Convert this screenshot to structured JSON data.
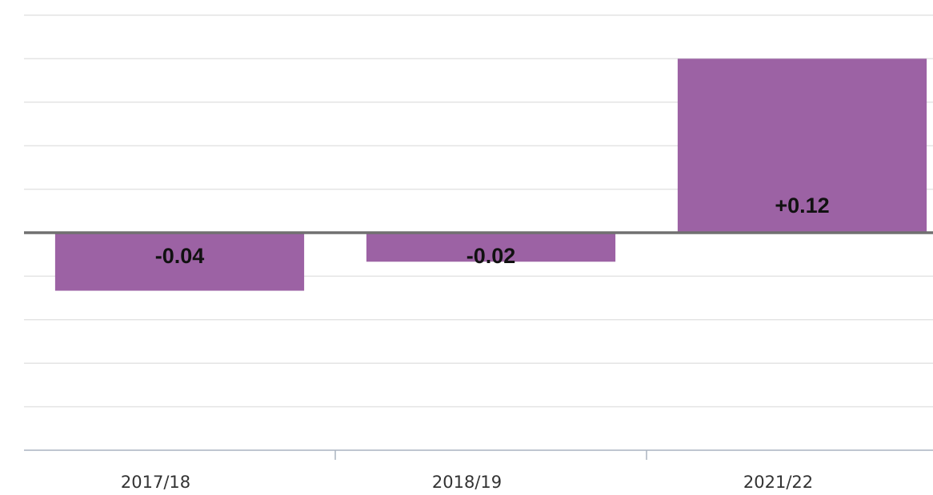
{
  "chart_data": {
    "type": "bar",
    "categories": [
      "2017/18",
      "2018/19",
      "2021/22"
    ],
    "values": [
      -0.04,
      -0.02,
      0.12
    ],
    "value_labels": [
      "-0.04",
      "-0.02",
      "+0.12"
    ],
    "color": "#9a5fa2",
    "ylim": [
      -0.15,
      0.15
    ],
    "yticks": [
      -0.15,
      -0.12,
      -0.09,
      -0.06,
      -0.03,
      0,
      0.03,
      0.06,
      0.09,
      0.12,
      0.15
    ],
    "grid": true
  }
}
